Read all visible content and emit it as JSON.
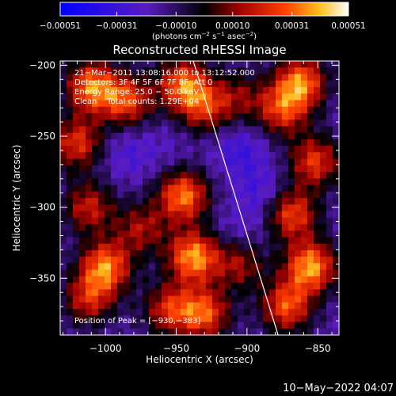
{
  "chart_data": {
    "type": "heatmap",
    "title": "Reconstructed RHESSI Image",
    "xlabel": "Heliocentric X (arcsec)",
    "ylabel": "Heliocentric Y (arcsec)",
    "xlim": [
      -1032,
      -835
    ],
    "ylim": [
      -390,
      -197
    ],
    "x_ticks": [
      -1000,
      -950,
      -900,
      -850
    ],
    "x_tick_labels": [
      "−1000",
      "−950",
      "−900",
      "−850"
    ],
    "y_ticks": [
      -200,
      -250,
      -300,
      -350
    ],
    "y_tick_labels": [
      "−200",
      "−250",
      "−300",
      "−350"
    ],
    "colorbar": {
      "range": [
        -0.00051,
        0.00051
      ],
      "ticks": [
        -0.00051,
        -0.00031,
        -0.0001,
        0.0001,
        0.00031,
        0.00051
      ],
      "tick_labels": [
        "−0.00051",
        "−0.00031",
        "−0.00010",
        "0.00010",
        "0.00031",
        "0.00051"
      ],
      "unit_prefix": "(photons cm",
      "unit_exp1": "−2",
      "unit_mid": " s",
      "unit_exp2": "−1",
      "unit_mid2": " asec",
      "unit_exp3": "−2",
      "unit_suffix": ")"
    },
    "annotations": [
      "21−Mar−2011 13:08:16.000 to 13:12:52.000",
      "Detectors: 3F 4F 5F 6F 7F 8F, Att 0",
      "Energy Range: 25.0 − 50.0 keV",
      "Clean    Total counts: 1.29E+04"
    ],
    "peak_label": "Position of Peak = [−930,−383]",
    "limb_line": [
      [
        -938,
        -197
      ],
      [
        -878,
        -390
      ]
    ],
    "grid": false,
    "grid_size": [
      44,
      42
    ],
    "hotspots": [
      {
        "x": -1010,
        "y": -215,
        "v": 0.00045
      },
      {
        "x": -1020,
        "y": -255,
        "v": 0.00035
      },
      {
        "x": -985,
        "y": -225,
        "v": 0.00038
      },
      {
        "x": -945,
        "y": -213,
        "v": 0.00042
      },
      {
        "x": -930,
        "y": -230,
        "v": 0.0003
      },
      {
        "x": -1012,
        "y": -300,
        "v": 0.0003
      },
      {
        "x": -1000,
        "y": -342,
        "v": 0.00046
      },
      {
        "x": -1012,
        "y": -365,
        "v": 0.0003
      },
      {
        "x": -975,
        "y": -315,
        "v": 0.00025
      },
      {
        "x": -945,
        "y": -292,
        "v": 0.00046
      },
      {
        "x": -938,
        "y": -335,
        "v": 0.0005
      },
      {
        "x": -930,
        "y": -375,
        "v": 0.0004
      },
      {
        "x": -955,
        "y": -372,
        "v": 0.00032
      },
      {
        "x": -905,
        "y": -340,
        "v": 0.00025
      },
      {
        "x": -862,
        "y": -212,
        "v": 0.00045
      },
      {
        "x": -875,
        "y": -232,
        "v": 0.00034
      },
      {
        "x": -852,
        "y": -268,
        "v": 0.00036
      },
      {
        "x": -868,
        "y": -305,
        "v": 0.00038
      },
      {
        "x": -855,
        "y": -342,
        "v": 0.0005
      },
      {
        "x": -872,
        "y": -370,
        "v": 0.0004
      },
      {
        "x": -905,
        "y": -222,
        "v": 0.00018
      },
      {
        "x": -958,
        "y": -258,
        "v": -8e-05
      },
      {
        "x": -905,
        "y": -260,
        "v": -0.00018
      },
      {
        "x": -890,
        "y": -290,
        "v": -0.00016
      },
      {
        "x": -985,
        "y": -262,
        "v": -0.00014
      },
      {
        "x": -905,
        "y": -318,
        "v": -0.00012
      }
    ]
  },
  "footer": {
    "timestamp": "10−May−2022 04:07"
  }
}
